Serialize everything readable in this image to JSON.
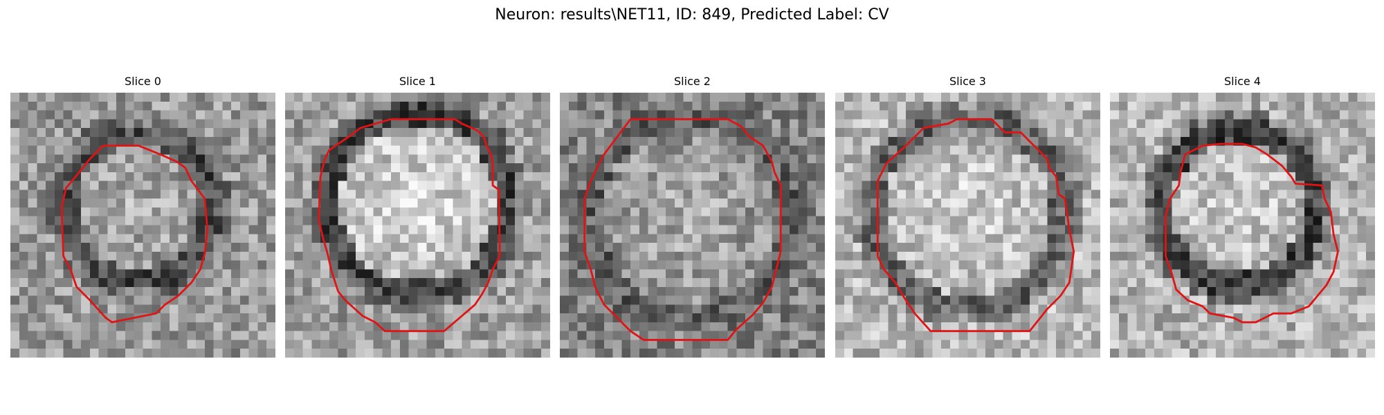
{
  "figure": {
    "title": "Neuron: results\\NET11, ID: 849, Predicted Label: CV"
  },
  "panels": [
    {
      "title": "Slice 0"
    },
    {
      "title": "Slice 1"
    },
    {
      "title": "Slice 2"
    },
    {
      "title": "Slice 3"
    },
    {
      "title": "Slice 4"
    }
  ],
  "colors": {
    "contour": "#e01414",
    "background": "#ffffff"
  }
}
